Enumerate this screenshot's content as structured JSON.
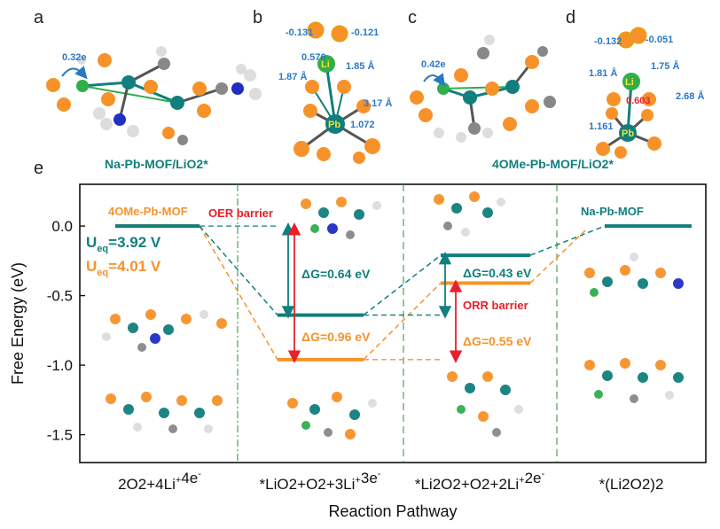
{
  "panels": {
    "a": {
      "letter": "a",
      "charge": "0.32e"
    },
    "b": {
      "letter": "b",
      "q1": "-0.131",
      "q2": "-0.121",
      "q_li": "0.576",
      "d1": "1.85 Å",
      "d2": "1.87 Å",
      "d3": "3.17 Å",
      "q_pb": "1.072",
      "li": "Li",
      "pb": "Pb"
    },
    "c": {
      "letter": "c",
      "charge": "0.42e"
    },
    "d": {
      "letter": "d",
      "q1": "-0.132",
      "q2": "-0.051",
      "d1": "1.81 Å",
      "d2": "1.75 Å",
      "q_li": "0.603",
      "d3": "2.68 Å",
      "q_pb": "1.161",
      "li": "Li",
      "pb": "Pb"
    },
    "e": {
      "letter": "e"
    }
  },
  "captions": {
    "left": "Na-Pb-MOF/LiO2*",
    "right": "4OMe-Pb-MOF/LiO2*"
  },
  "chart_data": {
    "type": "line",
    "xlabel": "Reaction Pathway",
    "ylabel": "Free Energy (eV)",
    "ylim": [
      -1.7,
      0.3
    ],
    "yticks": [
      0.0,
      -0.5,
      -1.0,
      -1.5
    ],
    "ytick_labels": [
      "0.0",
      "-0.5",
      "-1.0",
      "-1.5"
    ],
    "categories": [
      "2O2+4Li+4e-",
      "*LiO2+O2+3Li+3e-",
      "*Li2O2+O2+2Li+2e-",
      "*(Li2O2)2"
    ],
    "series": [
      {
        "name": "4OMe-Pb-MOF",
        "color": "#f7922a",
        "values": [
          0.0,
          -0.96,
          -0.41,
          null
        ]
      },
      {
        "name": "Na-Pb-MOF",
        "color": "#107f7d",
        "values": [
          0.0,
          -0.64,
          -0.21,
          0.0
        ]
      }
    ],
    "annotations": {
      "ueq_teal": "3.92 V",
      "ueq_orange": "4.01 V",
      "u": "U",
      "eq": "eq",
      "oer": "OER barrier",
      "orr": "ORR barrier",
      "dg1": "ΔG=0.64 eV",
      "dg2": "ΔG=0.96 eV",
      "dg3": "ΔG=0.43 eV",
      "dg4": "ΔG=0.55 eV"
    },
    "colors": {
      "teal": "#107f7d",
      "orange": "#f7922a",
      "red": "#e8202a",
      "green": "#2e8b3a"
    }
  }
}
